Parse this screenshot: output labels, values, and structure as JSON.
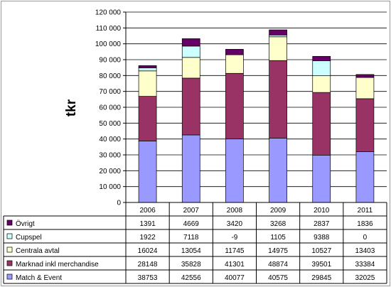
{
  "chart_data": {
    "type": "bar",
    "stacked": true,
    "ylabel": "tkr",
    "ylim": [
      0,
      120000
    ],
    "yticks": [
      "0",
      "10 000",
      "20 000",
      "30 000",
      "40 000",
      "50 000",
      "60 000",
      "70 000",
      "80 000",
      "90 000",
      "100 000",
      "110 000",
      "120 000"
    ],
    "ytick_values": [
      0,
      10000,
      20000,
      30000,
      40000,
      50000,
      60000,
      70000,
      80000,
      90000,
      100000,
      110000,
      120000
    ],
    "grid": true,
    "legend": "data-table",
    "categories": [
      "2006",
      "2007",
      "2008",
      "2009",
      "2010",
      "2011"
    ],
    "series": [
      {
        "name": "Match & Event",
        "color": "#9999ff",
        "values": [
          38753,
          42556,
          40077,
          40575,
          29845,
          32025
        ]
      },
      {
        "name": "Marknad inkl merchandise",
        "color": "#993366",
        "values": [
          28148,
          35828,
          41301,
          48874,
          39501,
          33384
        ]
      },
      {
        "name": "Centrala avtal",
        "color": "#ffffcc",
        "values": [
          16024,
          13054,
          11745,
          14975,
          10527,
          13403
        ]
      },
      {
        "name": "Cupspel",
        "color": "#ccffff",
        "values": [
          1922,
          7118,
          -9,
          1105,
          9388,
          0
        ]
      },
      {
        "name": "Övrigt",
        "color": "#660066",
        "values": [
          1391,
          4669,
          3420,
          3268,
          2837,
          1836
        ]
      }
    ]
  }
}
